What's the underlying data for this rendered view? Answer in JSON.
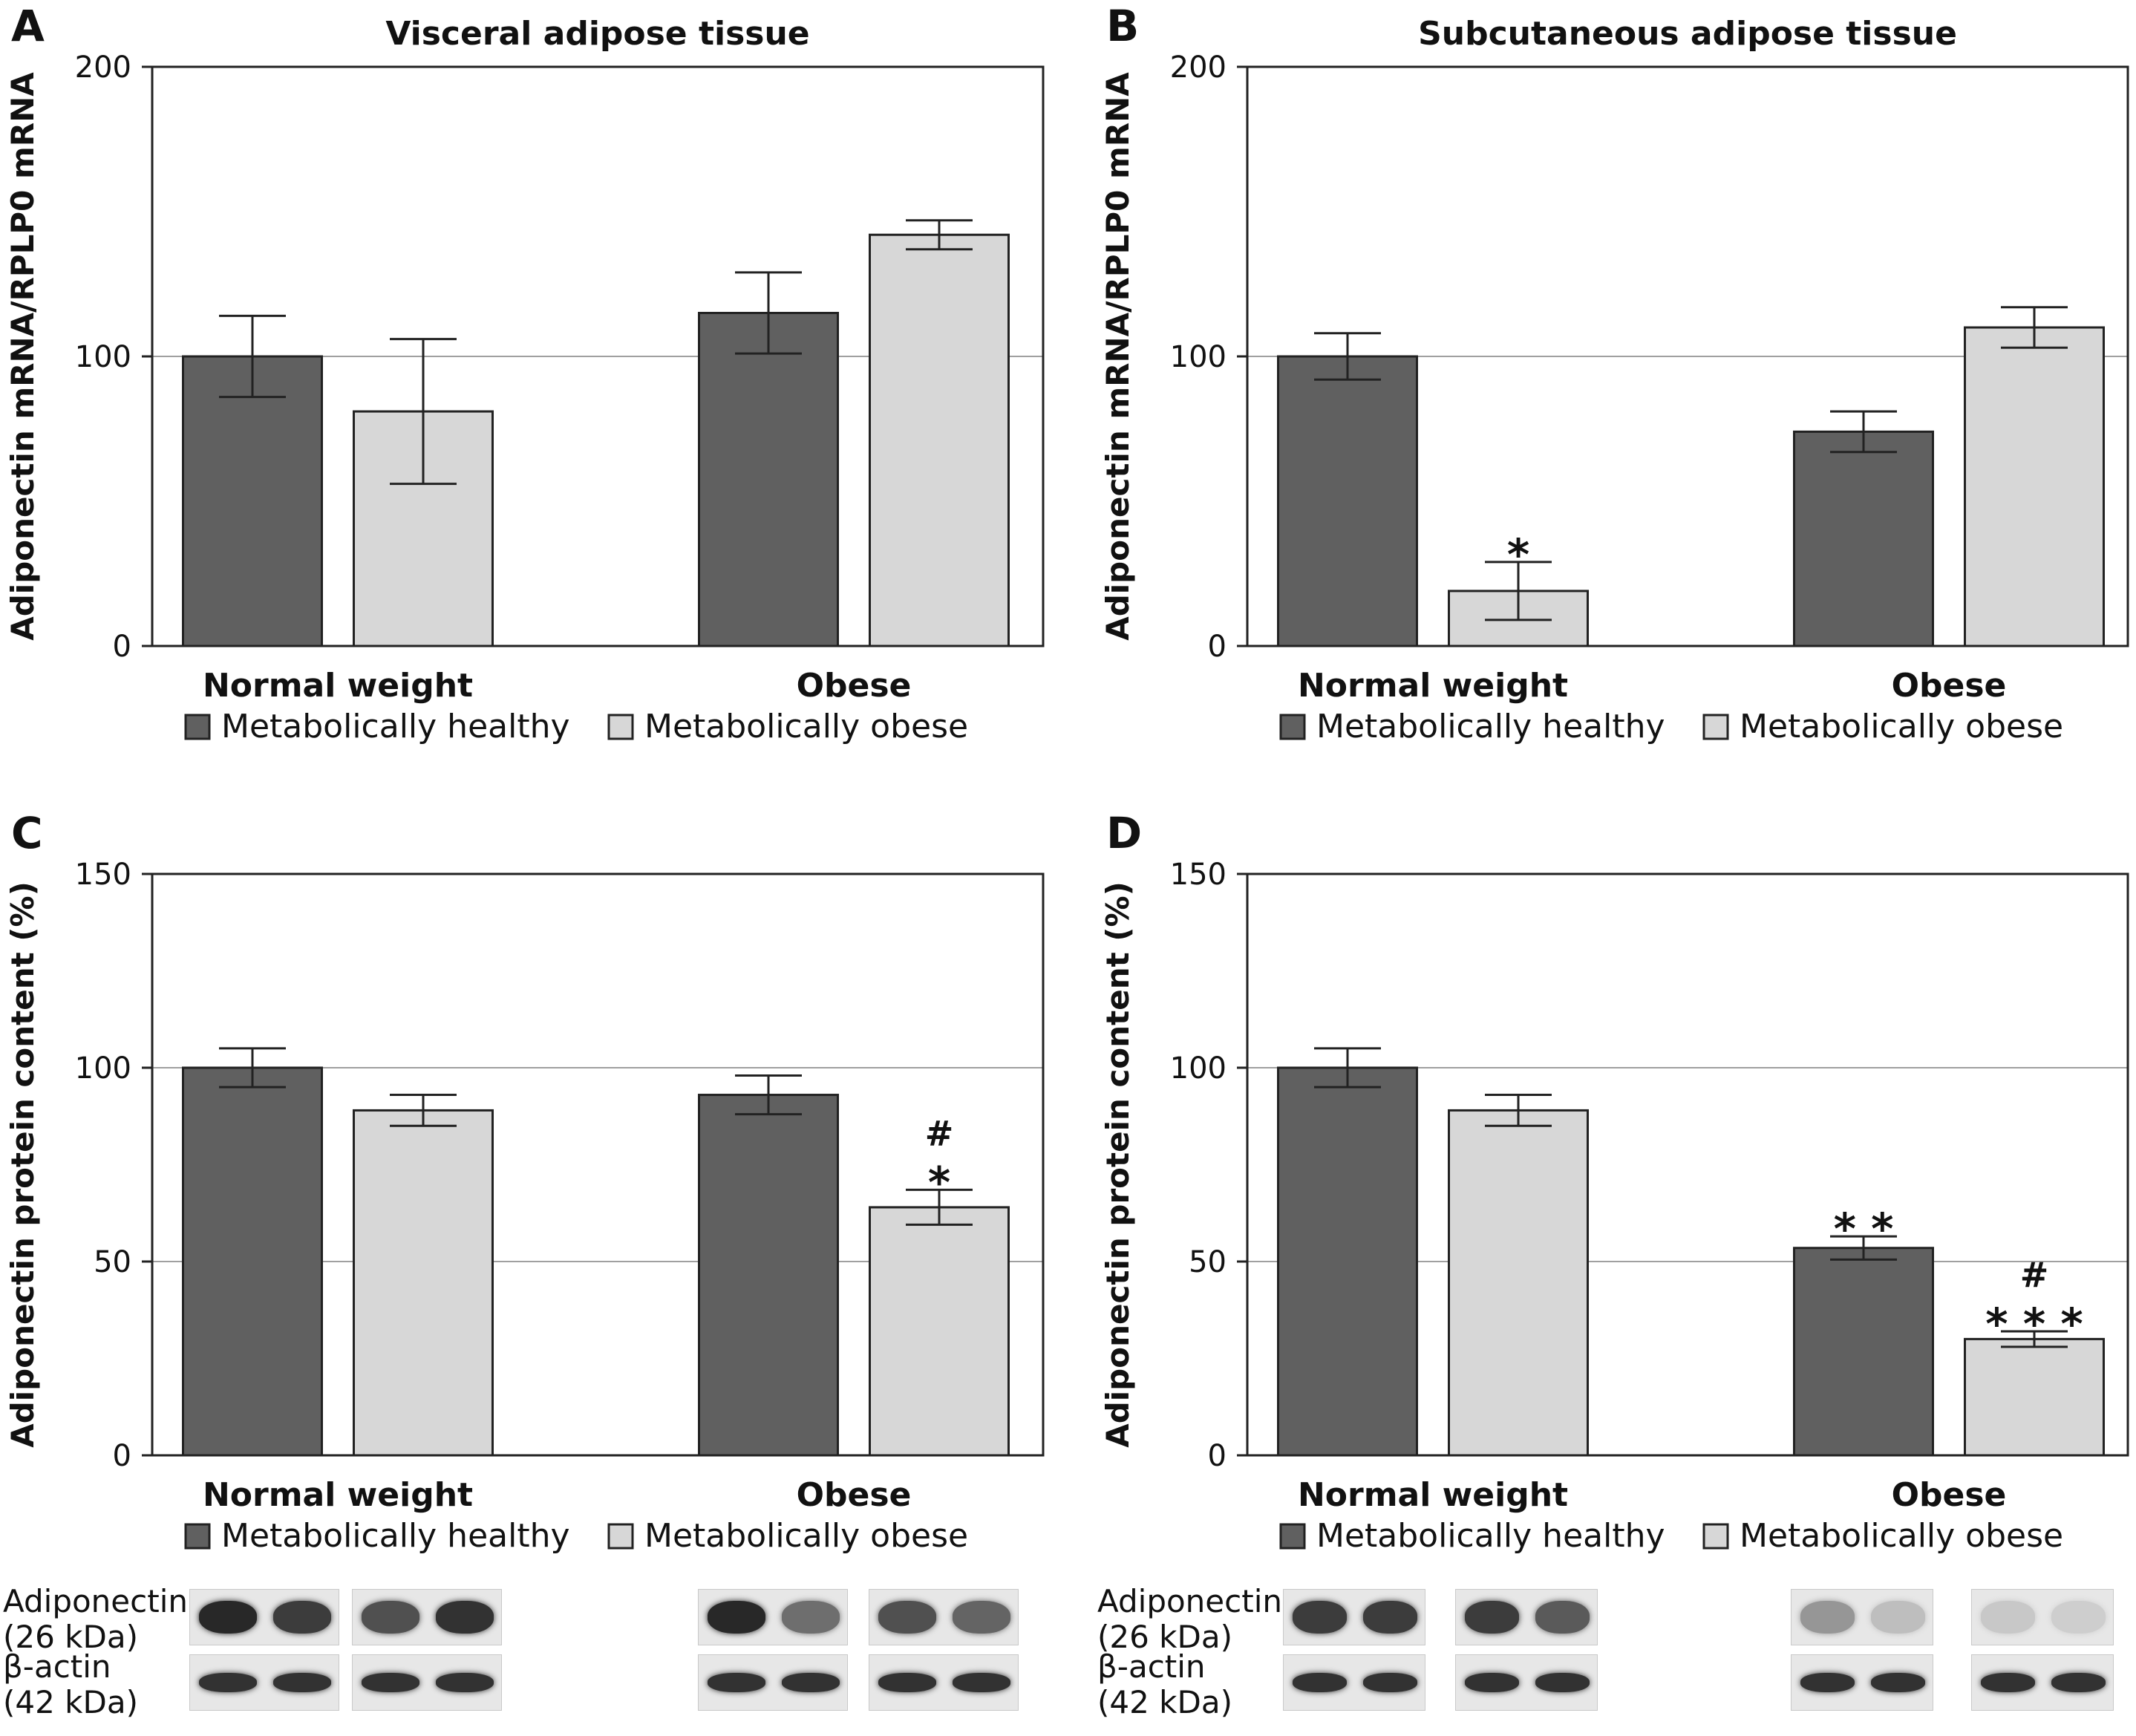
{
  "chart_data": [
    {
      "type": "bar",
      "panel_label": "A",
      "title": "Visceral adipose tissue",
      "ylabel": "Adiponectin mRNA/RPLP0 mRNA",
      "xlabel": "",
      "ylim": [
        0,
        200
      ],
      "yticks": [
        0,
        100,
        200
      ],
      "gridlines": [
        100
      ],
      "categories": [
        "Normal weight",
        "Obese"
      ],
      "series": [
        {
          "name": "Metabolically healthy",
          "color": "#606060",
          "values": [
            100,
            115
          ],
          "errors": [
            14,
            14
          ]
        },
        {
          "name": "Metabolically obese",
          "color": "#d7d7d7",
          "values": [
            81,
            142
          ],
          "errors": [
            25,
            5
          ]
        }
      ],
      "annotations": [],
      "legend": "bottom"
    },
    {
      "type": "bar",
      "panel_label": "B",
      "title": "Subcutaneous adipose tissue",
      "ylabel": "Adiponectin mRNA/RPLP0 mRNA",
      "xlabel": "",
      "ylim": [
        0,
        200
      ],
      "yticks": [
        0,
        100,
        200
      ],
      "gridlines": [
        100
      ],
      "categories": [
        "Normal weight",
        "Obese"
      ],
      "series": [
        {
          "name": "Metabolically healthy",
          "color": "#606060",
          "values": [
            100,
            74
          ],
          "errors": [
            8,
            7
          ]
        },
        {
          "name": "Metabolically obese",
          "color": "#d7d7d7",
          "values": [
            19,
            110
          ],
          "errors": [
            10,
            7
          ]
        }
      ],
      "annotations": [
        {
          "category": 0,
          "series": 1,
          "lines": [
            "*"
          ]
        }
      ],
      "legend": "bottom"
    },
    {
      "type": "bar",
      "panel_label": "C",
      "title": "",
      "ylabel": "Adiponectin protein content (%)",
      "xlabel": "",
      "ylim": [
        0,
        150
      ],
      "yticks": [
        0,
        50,
        100,
        150
      ],
      "gridlines": [
        50,
        100
      ],
      "categories": [
        "Normal weight",
        "Obese"
      ],
      "series": [
        {
          "name": "Metabolically healthy",
          "color": "#606060",
          "values": [
            100,
            93
          ],
          "errors": [
            5,
            5
          ]
        },
        {
          "name": "Metabolically obese",
          "color": "#d7d7d7",
          "values": [
            89,
            64
          ],
          "errors": [
            4,
            4.5
          ]
        }
      ],
      "annotations": [
        {
          "category": 1,
          "series": 1,
          "lines": [
            "#",
            "*"
          ]
        }
      ],
      "legend": "bottom"
    },
    {
      "type": "bar",
      "panel_label": "D",
      "title": "",
      "ylabel": "Adiponectin protein content (%)",
      "xlabel": "",
      "ylim": [
        0,
        150
      ],
      "yticks": [
        0,
        50,
        100,
        150
      ],
      "gridlines": [
        50,
        100
      ],
      "categories": [
        "Normal weight",
        "Obese"
      ],
      "series": [
        {
          "name": "Metabolically healthy",
          "color": "#606060",
          "values": [
            100,
            53.5
          ],
          "errors": [
            5,
            3
          ]
        },
        {
          "name": "Metabolically obese",
          "color": "#d7d7d7",
          "values": [
            89,
            30
          ],
          "errors": [
            4,
            2
          ]
        }
      ],
      "annotations": [
        {
          "category": 1,
          "series": 0,
          "lines": [
            "* *"
          ]
        },
        {
          "category": 1,
          "series": 1,
          "lines": [
            "#",
            "* * *"
          ]
        }
      ],
      "legend": "bottom"
    }
  ],
  "blots": [
    {
      "panel": "C",
      "rows": [
        {
          "label": "Adiponectin",
          "sublabel": "(26 kDa)",
          "intensities": [
            [
              0.95,
              0.85
            ],
            [
              0.75,
              0.9
            ],
            [
              0.95,
              0.6
            ],
            [
              0.75,
              0.65
            ]
          ]
        },
        {
          "label": "β-actin",
          "sublabel": "(42 kDa)",
          "intensities": [
            [
              0.9,
              0.9
            ],
            [
              0.9,
              0.9
            ],
            [
              0.9,
              0.9
            ],
            [
              0.9,
              0.9
            ]
          ]
        }
      ]
    },
    {
      "panel": "D",
      "rows": [
        {
          "label": "Adiponectin",
          "sublabel": "(26 kDa)",
          "intensities": [
            [
              0.85,
              0.85
            ],
            [
              0.85,
              0.7
            ],
            [
              0.4,
              0.2
            ],
            [
              0.15,
              0.12
            ]
          ]
        },
        {
          "label": "β-actin",
          "sublabel": "(42 kDa)",
          "intensities": [
            [
              0.9,
              0.9
            ],
            [
              0.9,
              0.9
            ],
            [
              0.9,
              0.9
            ],
            [
              0.9,
              0.9
            ]
          ]
        }
      ]
    }
  ]
}
